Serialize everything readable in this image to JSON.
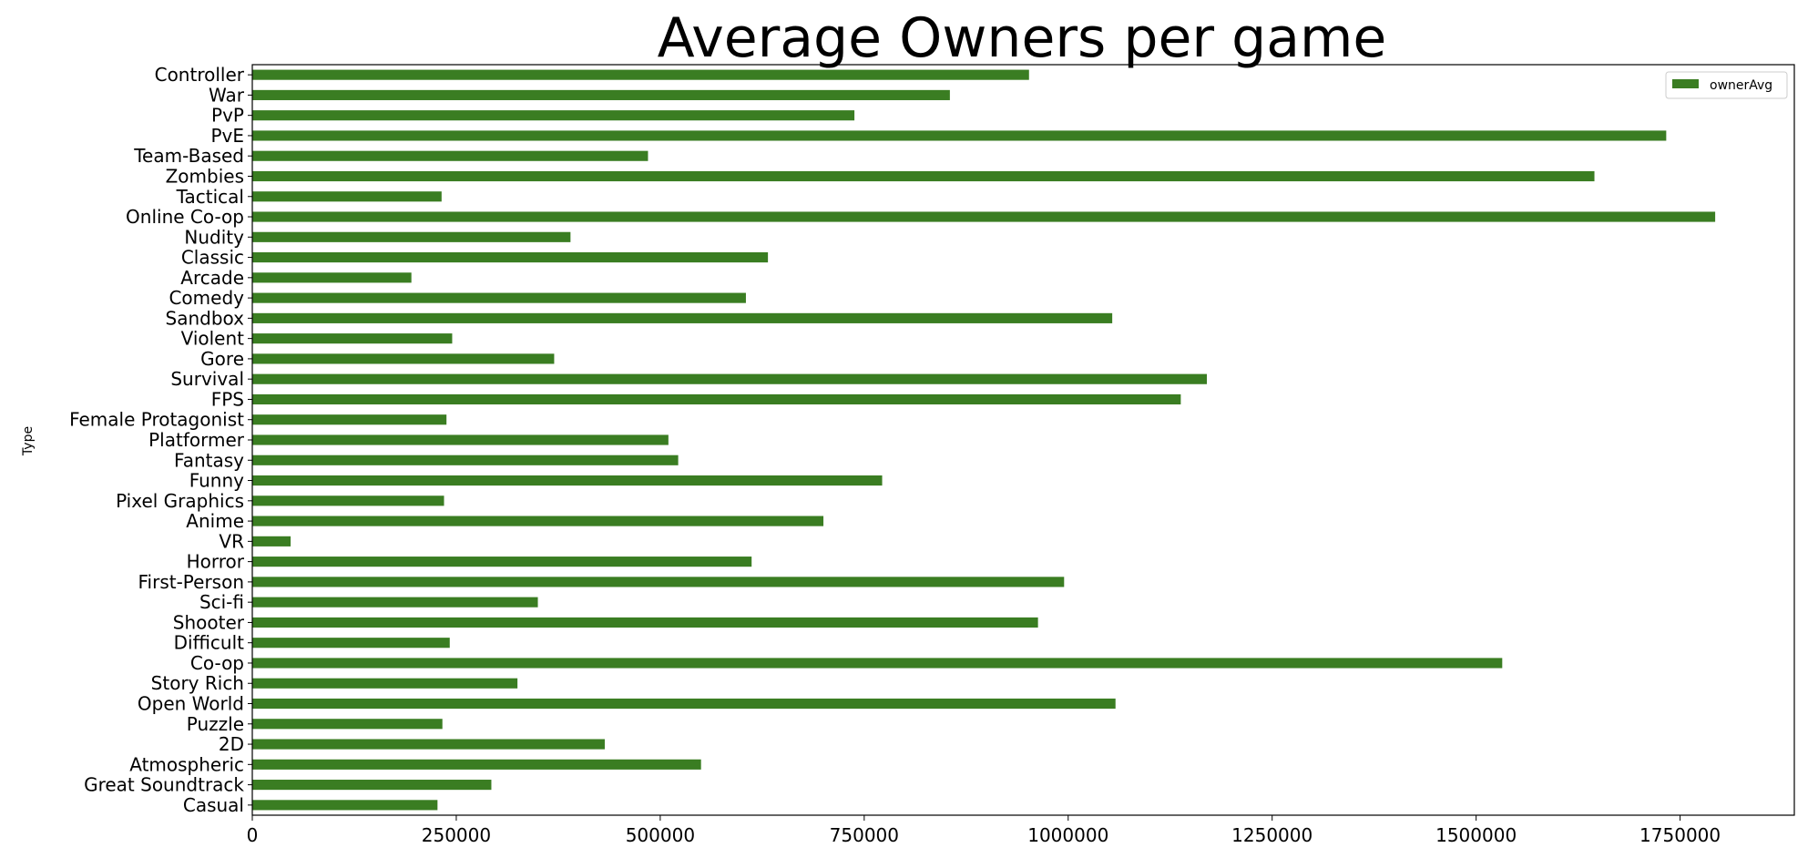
{
  "chart_data": {
    "type": "bar",
    "orientation": "horizontal",
    "title": "Average Owners per game",
    "xlabel": "",
    "ylabel": "Type",
    "xlim": [
      0,
      1890000
    ],
    "xticks": [
      0,
      250000,
      500000,
      750000,
      1000000,
      1250000,
      1500000,
      1750000
    ],
    "xtick_labels": [
      "0",
      "250000",
      "500000",
      "750000",
      "1000000",
      "1250000",
      "1500000",
      "1750000"
    ],
    "grid": false,
    "legend_position": "top-right",
    "bar_color": "#3a7d22",
    "categories": [
      "Controller",
      "War",
      "PvP",
      "PvE",
      "Team-Based",
      "Zombies",
      "Tactical",
      "Online Co-op",
      "Nudity",
      "Classic",
      "Arcade",
      "Comedy",
      "Sandbox",
      "Violent",
      "Gore",
      "Survival",
      "FPS",
      "Female Protagonist",
      "Platformer",
      "Fantasy",
      "Funny",
      "Pixel Graphics",
      "Anime",
      "VR",
      "Horror",
      "First-Person",
      "Sci-fi",
      "Shooter",
      "Difficult",
      "Co-op",
      "Story Rich",
      "Open World",
      "Puzzle",
      "2D",
      "Atmospheric",
      "Great Soundtrack",
      "Casual"
    ],
    "series": [
      {
        "name": "ownerAvg",
        "values": [
          952000,
          855000,
          738000,
          1733000,
          485000,
          1645000,
          232000,
          1793000,
          390000,
          632000,
          195000,
          605000,
          1054000,
          245000,
          370000,
          1170000,
          1138000,
          238000,
          510000,
          522000,
          772000,
          235000,
          700000,
          47000,
          612000,
          995000,
          350000,
          963000,
          242000,
          1532000,
          325000,
          1058000,
          233000,
          432000,
          550000,
          293000,
          227000
        ]
      }
    ]
  }
}
